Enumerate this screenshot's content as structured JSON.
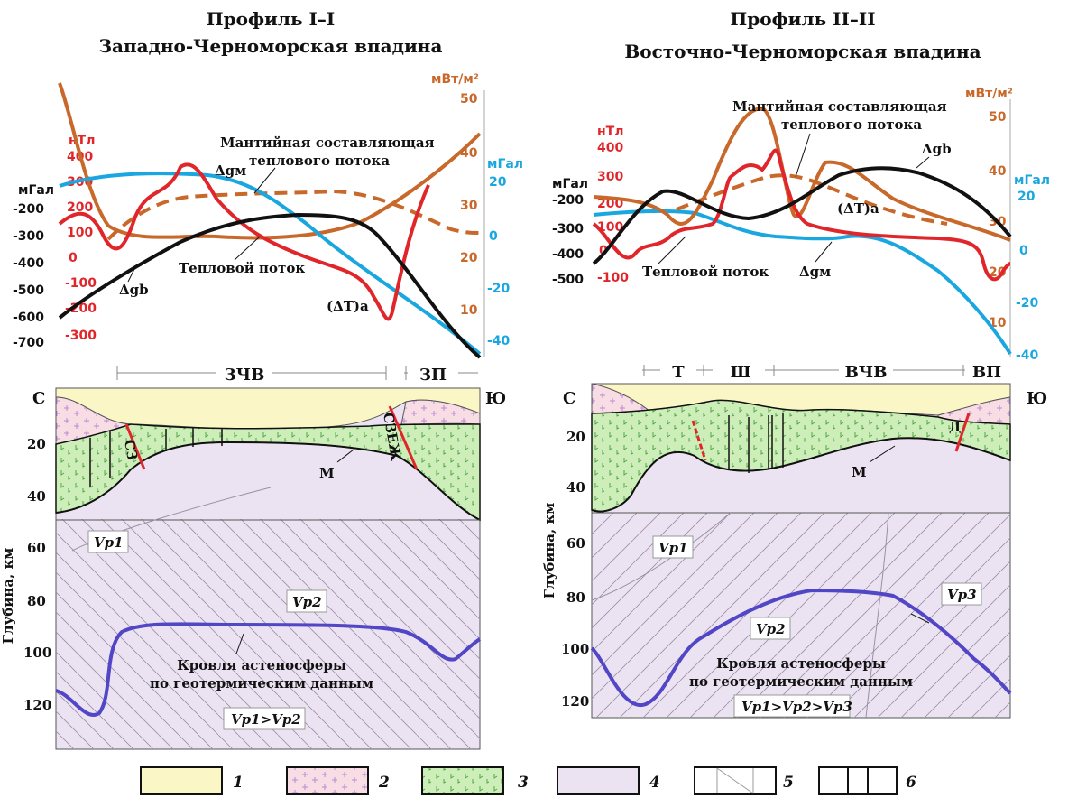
{
  "profile1": {
    "title": "Профиль I–I",
    "subtitle": "Западно-Черноморская впадина",
    "axis_mgal_left": "мГал",
    "axis_mgal_left_ticks": [
      "-200",
      "-300",
      "-400",
      "-500",
      "-600",
      "-700"
    ],
    "axis_nt": "нТл",
    "axis_nt_ticks": [
      "400",
      "300",
      "200",
      "100",
      "0",
      "-100",
      "-200",
      "-300"
    ],
    "axis_mw": "мВт/м²",
    "axis_mw_ticks": [
      "50",
      "40",
      "30",
      "20",
      "10"
    ],
    "axis_mgal_right": "мГал",
    "axis_mgal_right_ticks": [
      "20",
      "0",
      "-20",
      "-40"
    ],
    "label_mantle": "Мантийная составляющая",
    "label_mantle2": "теплового потока",
    "label_dgm": "Δgм",
    "label_dgb": "Δgb",
    "label_heat": "Тепловой поток",
    "label_dt": "(ΔT)a",
    "zone1": "ЗЧВ",
    "zone2": "ЗП",
    "north": "С",
    "south": "Ю",
    "moho": "М",
    "depth_axis": "Глубина, км",
    "depth_ticks": [
      "20",
      "40",
      "60",
      "80",
      "100",
      "120"
    ],
    "vp1": "Vp1",
    "vp2": "Vp2",
    "astheno1": "Кровля астеносферы",
    "astheno2": "по геотермическим данным",
    "vp_rel": "Vp1>Vp2",
    "fault1": "СЗ",
    "fault2": "СЗЕЖ"
  },
  "profile2": {
    "title": "Профиль II–II",
    "subtitle": "Восточно-Черноморская впадина",
    "axis_mgal_left": "мГал",
    "axis_mgal_left_ticks": [
      "-200",
      "-300",
      "-400",
      "-500"
    ],
    "axis_nt": "нТл",
    "axis_nt_ticks": [
      "400",
      "300",
      "200",
      "100",
      "0",
      "-100"
    ],
    "axis_mw": "мВт/м²",
    "axis_mw_ticks": [
      "50",
      "40",
      "30",
      "20",
      "10"
    ],
    "axis_mgal_right": "мГал",
    "axis_mgal_right_ticks": [
      "20",
      "0",
      "-20",
      "-40"
    ],
    "label_mantle": "Мантийная составляющая",
    "label_mantle2": "теплового потока",
    "label_dgb": "Δgb",
    "label_dt": "(ΔT)a",
    "label_heat": "Тепловой поток",
    "label_dgm": "Δgм",
    "zone_t": "Т",
    "zone_sh": "Ш",
    "zone_vchv": "ВЧВ",
    "zone_vp": "ВП",
    "north": "С",
    "south": "Ю",
    "moho": "М",
    "depth_axis": "Глубина, км",
    "depth_ticks": [
      "20",
      "40",
      "60",
      "80",
      "100",
      "120"
    ],
    "vp1": "Vp1",
    "vp2": "Vp2",
    "vp3": "Vp3",
    "astheno1": "Кровля астеносферы",
    "astheno2": "по геотермическим данным",
    "vp_rel": "Vp1>Vp2>Vp3",
    "fault1": "Д"
  },
  "legend": [
    "1",
    "2",
    "3",
    "4",
    "5",
    "6"
  ],
  "colors": {
    "sediment": "#fbf6c6",
    "granite": "#f8dde4",
    "basalt": "#cdeeb8",
    "mantle": "#ece3f2",
    "asthenosphere": "#5046c6",
    "heat_flow": "#c8682a",
    "gravity_mantle": "#1aa7e0",
    "magnetic": "#e0262a",
    "gravity_bouguer": "#111111"
  }
}
